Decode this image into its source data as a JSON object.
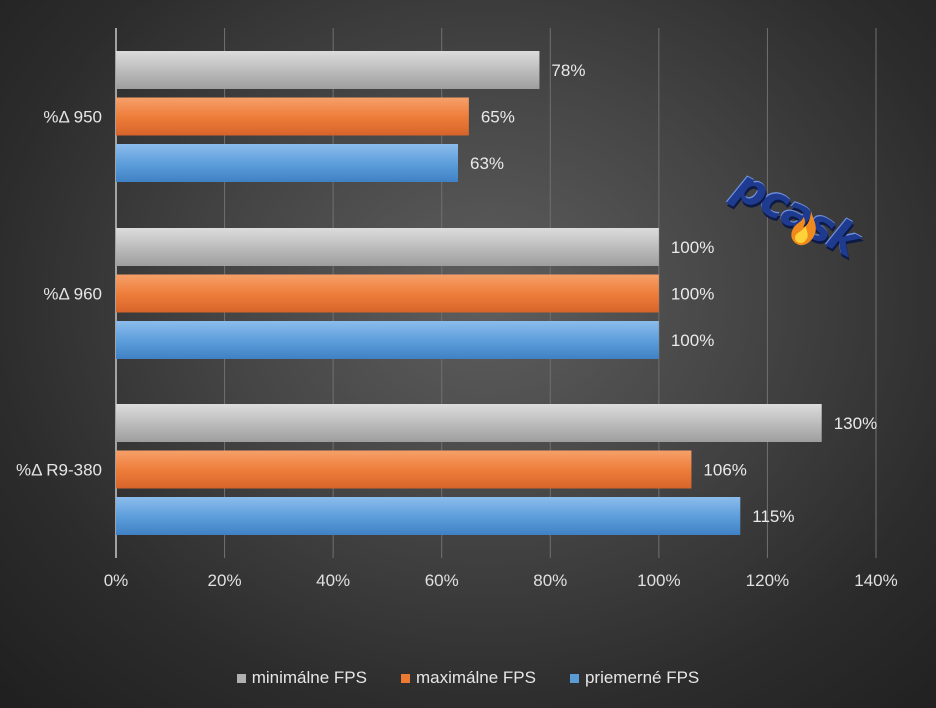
{
  "chart_data": {
    "type": "bar",
    "orientation": "horizontal",
    "categories": [
      "%Δ 950",
      "%Δ 960",
      "%Δ R9-380"
    ],
    "series": [
      {
        "name": "minimálne FPS",
        "color": "#b0b0b0",
        "values": [
          78,
          100,
          130
        ],
        "labels": [
          "78%",
          "100%",
          "130%"
        ]
      },
      {
        "name": "maximálne FPS",
        "color": "#ec7a33",
        "values": [
          65,
          100,
          106
        ],
        "labels": [
          "65%",
          "100%",
          "106%"
        ]
      },
      {
        "name": "priemerné FPS",
        "color": "#5b9bd5",
        "values": [
          63,
          100,
          115
        ],
        "labels": [
          "63%",
          "100%",
          "115%"
        ]
      }
    ],
    "xlim": [
      0,
      140
    ],
    "xticks": [
      0,
      20,
      40,
      60,
      80,
      100,
      120,
      140
    ],
    "xtick_labels": [
      "0%",
      "20%",
      "40%",
      "60%",
      "80%",
      "100%",
      "120%",
      "140%"
    ],
    "grid": true,
    "legend_position": "bottom"
  },
  "logo": {
    "text": "pcask",
    "icon": "flame-icon"
  }
}
